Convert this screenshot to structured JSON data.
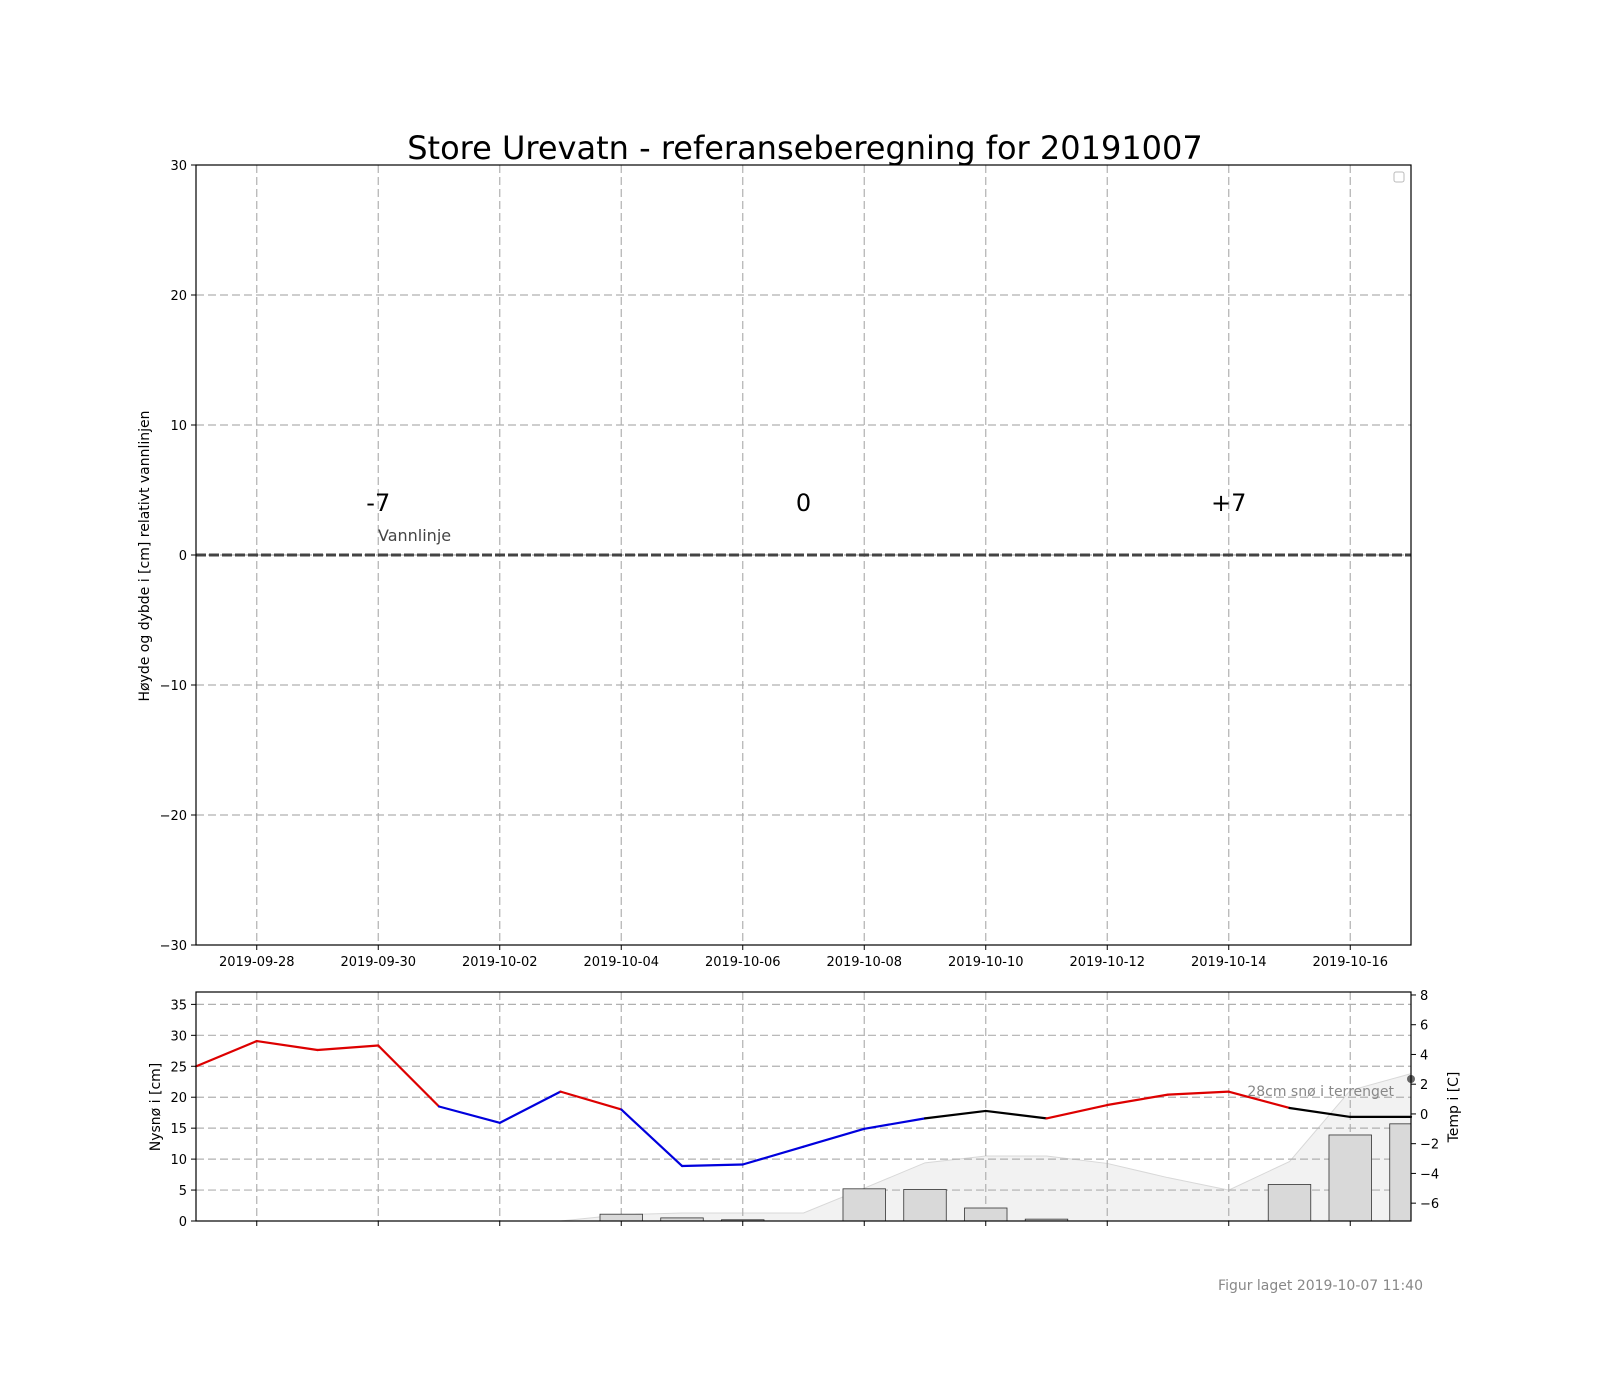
{
  "chart_data": [
    {
      "type": "line",
      "title": "Store Urevatn - referanseberegning for 20191007",
      "ylabel": "Høyde og dybde i [cm] relativt vannlinjen",
      "ylim": [
        -30,
        30
      ],
      "y_ticks": [
        "30",
        "20",
        "10",
        "0",
        "−10",
        "−20",
        "−30"
      ],
      "x_tick_labels": [
        "2019-09-28",
        "2019-09-30",
        "2019-10-02",
        "2019-10-04",
        "2019-10-06",
        "2019-10-08",
        "2019-10-10",
        "2019-10-12",
        "2019-10-14",
        "2019-10-16"
      ],
      "grid": true,
      "legend": "top-right (empty)",
      "reference_line": {
        "label": "Vannlinje",
        "y": 0
      },
      "annotations": [
        {
          "text": "-7",
          "x": "2019-09-30"
        },
        {
          "text": "0",
          "x": "2019-10-07"
        },
        {
          "text": "+7",
          "x": "2019-10-14"
        }
      ]
    },
    {
      "type": "bar",
      "ylabel": "Nysnø i [cm]",
      "ylabel_right": "Temp i [C]",
      "ylim": [
        0,
        37
      ],
      "ylim_right": [
        -7.2,
        8.2
      ],
      "y_ticks": [
        "0",
        "5",
        "10",
        "15",
        "20",
        "25",
        "30",
        "35"
      ],
      "y_ticks_right": [
        "8",
        "6",
        "4",
        "2",
        "0",
        "−2",
        "−4",
        "−6"
      ],
      "grid": true,
      "dates": [
        "2019-09-28",
        "2019-09-29",
        "2019-09-30",
        "2019-10-01",
        "2019-10-02",
        "2019-10-03",
        "2019-10-04",
        "2019-10-05",
        "2019-10-06",
        "2019-10-07",
        "2019-10-08",
        "2019-10-09",
        "2019-10-10",
        "2019-10-11",
        "2019-10-12",
        "2019-10-13",
        "2019-10-14",
        "2019-10-15",
        "2019-10-16",
        "2019-10-17"
      ],
      "new_snow": [
        0,
        0,
        0,
        0,
        0,
        0,
        1.1,
        0.5,
        0.2,
        0,
        5.2,
        5.1,
        2.1,
        0.3,
        0,
        0,
        0,
        5.9,
        13.9,
        15.7
      ],
      "snow_depth": [
        0,
        0,
        0,
        0,
        0,
        0,
        1.0,
        1.3,
        1.3,
        1.3,
        5.3,
        9.4,
        10.5,
        10.5,
        9.3,
        7.0,
        5.0,
        9.6,
        21.1,
        23.8
      ],
      "temperature": {
        "dates": [
          "2019-09-27",
          "2019-09-28",
          "2019-09-29",
          "2019-09-30",
          "2019-10-01",
          "2019-10-02",
          "2019-10-03",
          "2019-10-04",
          "2019-10-05",
          "2019-10-06",
          "2019-10-07",
          "2019-10-08",
          "2019-10-09",
          "2019-10-10",
          "2019-10-11",
          "2019-10-12",
          "2019-10-13",
          "2019-10-14",
          "2019-10-15",
          "2019-10-16",
          "2019-10-17"
        ],
        "values": [
          3.2,
          4.9,
          4.3,
          4.6,
          0.5,
          -0.6,
          1.5,
          0.3,
          -3.5,
          -3.4,
          -2.2,
          -1.0,
          -0.3,
          0.2,
          -0.3,
          0.6,
          1.3,
          1.5,
          0.4,
          -0.2,
          -0.2
        ],
        "color_rule": "red above 0.5, black from -0.5 to 0.5, blue below -0.5"
      },
      "snow_depth_label": "28cm snø i terrenget",
      "colors": {
        "warm": "#dd0000",
        "neutral": "#000000",
        "cold": "#0000dd",
        "bars": "#d9d9d9",
        "area": "#f2f2f2"
      }
    }
  ],
  "footer": "Figur laget 2019-10-07 11:40"
}
